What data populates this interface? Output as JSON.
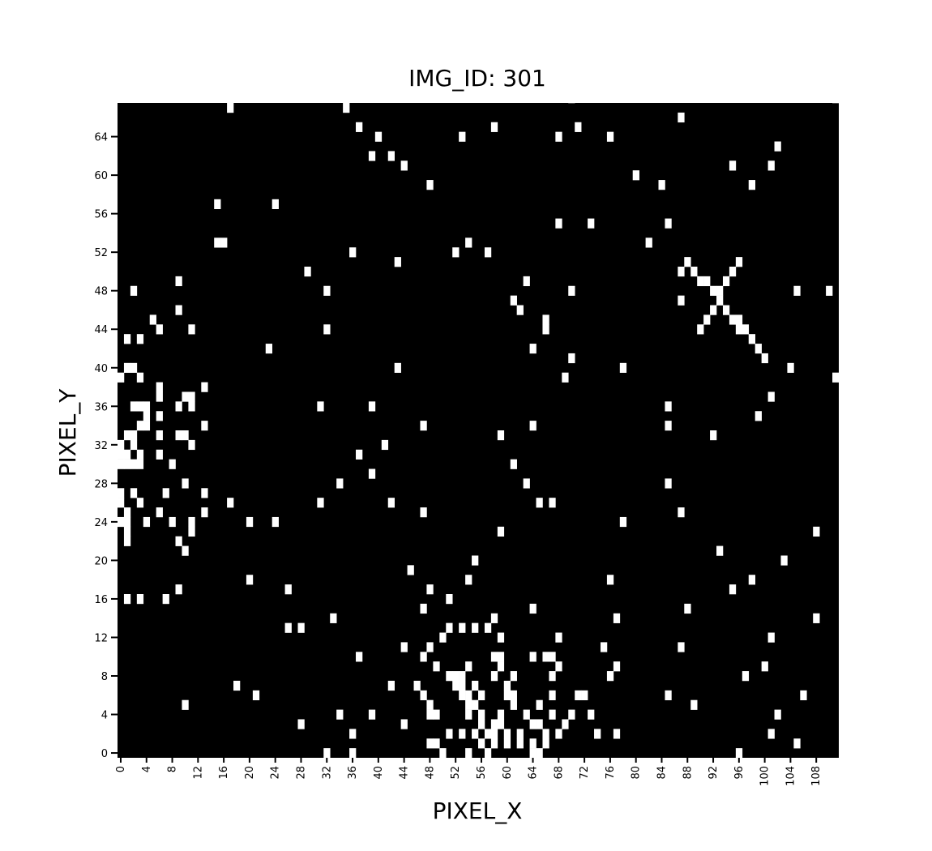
{
  "chart_data": {
    "type": "heatmap",
    "title": "IMG_ID: 301",
    "xlabel": "PIXEL_X",
    "ylabel": "PIXEL_Y",
    "width": 112,
    "height": 68,
    "colormap": {
      "0": "#000000",
      "1": "#ffffff"
    },
    "x_ticks": [
      0,
      4,
      8,
      12,
      16,
      20,
      24,
      28,
      32,
      36,
      40,
      44,
      48,
      52,
      56,
      60,
      64,
      68,
      72,
      76,
      80,
      84,
      88,
      92,
      96,
      100,
      104,
      108
    ],
    "y_ticks": [
      0,
      4,
      8,
      12,
      16,
      20,
      24,
      28,
      32,
      36,
      40,
      44,
      48,
      52,
      56,
      60,
      64
    ],
    "white_pixels": [
      [
        70,
        68
      ],
      [
        111,
        68
      ],
      [
        17,
        67
      ],
      [
        35,
        67
      ],
      [
        87,
        66
      ],
      [
        37,
        65
      ],
      [
        58,
        65
      ],
      [
        71,
        65
      ],
      [
        40,
        64
      ],
      [
        53,
        64
      ],
      [
        68,
        64
      ],
      [
        76,
        64
      ],
      [
        102,
        63
      ],
      [
        39,
        62
      ],
      [
        42,
        62
      ],
      [
        44,
        61
      ],
      [
        95,
        61
      ],
      [
        101,
        61
      ],
      [
        80,
        60
      ],
      [
        48,
        59
      ],
      [
        84,
        59
      ],
      [
        98,
        59
      ],
      [
        15,
        57
      ],
      [
        24,
        57
      ],
      [
        68,
        55
      ],
      [
        73,
        55
      ],
      [
        85,
        55
      ],
      [
        15,
        53
      ],
      [
        16,
        53
      ],
      [
        54,
        53
      ],
      [
        82,
        53
      ],
      [
        36,
        52
      ],
      [
        52,
        52
      ],
      [
        57,
        52
      ],
      [
        43,
        51
      ],
      [
        88,
        51
      ],
      [
        96,
        51
      ],
      [
        29,
        50
      ],
      [
        87,
        50
      ],
      [
        89,
        50
      ],
      [
        95,
        50
      ],
      [
        9,
        49
      ],
      [
        63,
        49
      ],
      [
        90,
        49
      ],
      [
        91,
        49
      ],
      [
        94,
        49
      ],
      [
        2,
        48
      ],
      [
        32,
        48
      ],
      [
        70,
        48
      ],
      [
        92,
        48
      ],
      [
        93,
        48
      ],
      [
        105,
        48
      ],
      [
        110,
        48
      ],
      [
        61,
        47
      ],
      [
        87,
        47
      ],
      [
        93,
        47
      ],
      [
        9,
        46
      ],
      [
        62,
        46
      ],
      [
        92,
        46
      ],
      [
        94,
        46
      ],
      [
        5,
        45
      ],
      [
        66,
        45
      ],
      [
        91,
        45
      ],
      [
        95,
        45
      ],
      [
        96,
        45
      ],
      [
        6,
        44
      ],
      [
        11,
        44
      ],
      [
        32,
        44
      ],
      [
        66,
        44
      ],
      [
        90,
        44
      ],
      [
        96,
        44
      ],
      [
        97,
        44
      ],
      [
        1,
        43
      ],
      [
        3,
        43
      ],
      [
        98,
        43
      ],
      [
        23,
        42
      ],
      [
        64,
        42
      ],
      [
        99,
        42
      ],
      [
        70,
        41
      ],
      [
        100,
        41
      ],
      [
        1,
        40
      ],
      [
        2,
        40
      ],
      [
        43,
        40
      ],
      [
        78,
        40
      ],
      [
        104,
        40
      ],
      [
        0,
        39
      ],
      [
        3,
        39
      ],
      [
        69,
        39
      ],
      [
        111,
        39
      ],
      [
        13,
        38
      ],
      [
        6,
        38
      ],
      [
        6,
        37
      ],
      [
        10,
        37
      ],
      [
        11,
        37
      ],
      [
        101,
        37
      ],
      [
        2,
        36
      ],
      [
        3,
        36
      ],
      [
        4,
        36
      ],
      [
        9,
        36
      ],
      [
        11,
        36
      ],
      [
        31,
        36
      ],
      [
        39,
        36
      ],
      [
        85,
        36
      ],
      [
        4,
        35
      ],
      [
        6,
        35
      ],
      [
        99,
        35
      ],
      [
        3,
        34
      ],
      [
        4,
        34
      ],
      [
        13,
        34
      ],
      [
        47,
        34
      ],
      [
        64,
        34
      ],
      [
        85,
        34
      ],
      [
        1,
        33
      ],
      [
        2,
        33
      ],
      [
        6,
        33
      ],
      [
        9,
        33
      ],
      [
        10,
        33
      ],
      [
        59,
        33
      ],
      [
        92,
        33
      ],
      [
        0,
        32
      ],
      [
        2,
        32
      ],
      [
        11,
        32
      ],
      [
        41,
        32
      ],
      [
        0,
        31
      ],
      [
        1,
        31
      ],
      [
        3,
        31
      ],
      [
        6,
        31
      ],
      [
        37,
        31
      ],
      [
        0,
        30
      ],
      [
        1,
        30
      ],
      [
        2,
        30
      ],
      [
        3,
        30
      ],
      [
        8,
        30
      ],
      [
        61,
        30
      ],
      [
        39,
        29
      ],
      [
        10,
        28
      ],
      [
        34,
        28
      ],
      [
        63,
        28
      ],
      [
        85,
        28
      ],
      [
        0,
        27
      ],
      [
        2,
        27
      ],
      [
        7,
        27
      ],
      [
        13,
        27
      ],
      [
        0,
        26
      ],
      [
        3,
        26
      ],
      [
        17,
        26
      ],
      [
        31,
        26
      ],
      [
        42,
        26
      ],
      [
        65,
        26
      ],
      [
        67,
        26
      ],
      [
        1,
        25
      ],
      [
        6,
        25
      ],
      [
        13,
        25
      ],
      [
        47,
        25
      ],
      [
        87,
        25
      ],
      [
        0,
        24
      ],
      [
        1,
        24
      ],
      [
        4,
        24
      ],
      [
        8,
        24
      ],
      [
        11,
        24
      ],
      [
        20,
        24
      ],
      [
        24,
        24
      ],
      [
        78,
        24
      ],
      [
        1,
        23
      ],
      [
        11,
        23
      ],
      [
        59,
        23
      ],
      [
        108,
        23
      ],
      [
        1,
        22
      ],
      [
        9,
        22
      ],
      [
        10,
        21
      ],
      [
        93,
        21
      ],
      [
        55,
        20
      ],
      [
        103,
        20
      ],
      [
        45,
        19
      ],
      [
        20,
        18
      ],
      [
        54,
        18
      ],
      [
        76,
        18
      ],
      [
        98,
        18
      ],
      [
        9,
        17
      ],
      [
        26,
        17
      ],
      [
        48,
        17
      ],
      [
        95,
        17
      ],
      [
        1,
        16
      ],
      [
        3,
        16
      ],
      [
        7,
        16
      ],
      [
        51,
        16
      ],
      [
        47,
        15
      ],
      [
        64,
        15
      ],
      [
        88,
        15
      ],
      [
        33,
        14
      ],
      [
        58,
        14
      ],
      [
        77,
        14
      ],
      [
        108,
        14
      ],
      [
        26,
        13
      ],
      [
        28,
        13
      ],
      [
        51,
        13
      ],
      [
        53,
        13
      ],
      [
        55,
        13
      ],
      [
        57,
        13
      ],
      [
        50,
        12
      ],
      [
        59,
        12
      ],
      [
        68,
        12
      ],
      [
        101,
        12
      ],
      [
        44,
        11
      ],
      [
        48,
        11
      ],
      [
        75,
        11
      ],
      [
        87,
        11
      ],
      [
        37,
        10
      ],
      [
        47,
        10
      ],
      [
        58,
        10
      ],
      [
        59,
        10
      ],
      [
        64,
        10
      ],
      [
        66,
        10
      ],
      [
        67,
        10
      ],
      [
        49,
        9
      ],
      [
        54,
        9
      ],
      [
        59,
        9
      ],
      [
        68,
        9
      ],
      [
        77,
        9
      ],
      [
        100,
        9
      ],
      [
        51,
        8
      ],
      [
        52,
        8
      ],
      [
        53,
        8
      ],
      [
        58,
        8
      ],
      [
        61,
        8
      ],
      [
        67,
        8
      ],
      [
        76,
        8
      ],
      [
        97,
        8
      ],
      [
        18,
        7
      ],
      [
        42,
        7
      ],
      [
        46,
        7
      ],
      [
        52,
        7
      ],
      [
        53,
        7
      ],
      [
        55,
        7
      ],
      [
        60,
        7
      ],
      [
        21,
        6
      ],
      [
        47,
        6
      ],
      [
        53,
        6
      ],
      [
        54,
        6
      ],
      [
        56,
        6
      ],
      [
        60,
        6
      ],
      [
        61,
        6
      ],
      [
        67,
        6
      ],
      [
        71,
        6
      ],
      [
        72,
        6
      ],
      [
        85,
        6
      ],
      [
        106,
        6
      ],
      [
        10,
        5
      ],
      [
        48,
        5
      ],
      [
        54,
        5
      ],
      [
        55,
        5
      ],
      [
        61,
        5
      ],
      [
        65,
        5
      ],
      [
        89,
        5
      ],
      [
        34,
        4
      ],
      [
        39,
        4
      ],
      [
        48,
        4
      ],
      [
        49,
        4
      ],
      [
        54,
        4
      ],
      [
        56,
        4
      ],
      [
        59,
        4
      ],
      [
        63,
        4
      ],
      [
        67,
        4
      ],
      [
        70,
        4
      ],
      [
        73,
        4
      ],
      [
        102,
        4
      ],
      [
        28,
        3
      ],
      [
        44,
        3
      ],
      [
        56,
        3
      ],
      [
        58,
        3
      ],
      [
        59,
        3
      ],
      [
        64,
        3
      ],
      [
        65,
        3
      ],
      [
        69,
        3
      ],
      [
        36,
        2
      ],
      [
        51,
        2
      ],
      [
        53,
        2
      ],
      [
        55,
        2
      ],
      [
        57,
        2
      ],
      [
        58,
        2
      ],
      [
        60,
        2
      ],
      [
        62,
        2
      ],
      [
        66,
        2
      ],
      [
        68,
        2
      ],
      [
        74,
        2
      ],
      [
        77,
        2
      ],
      [
        101,
        2
      ],
      [
        48,
        1
      ],
      [
        49,
        1
      ],
      [
        56,
        1
      ],
      [
        58,
        1
      ],
      [
        60,
        1
      ],
      [
        62,
        1
      ],
      [
        64,
        1
      ],
      [
        66,
        1
      ],
      [
        105,
        1
      ],
      [
        32,
        0
      ],
      [
        36,
        0
      ],
      [
        50,
        0
      ],
      [
        54,
        0
      ],
      [
        57,
        0
      ],
      [
        64,
        0
      ],
      [
        65,
        0
      ],
      [
        96,
        0
      ]
    ]
  }
}
